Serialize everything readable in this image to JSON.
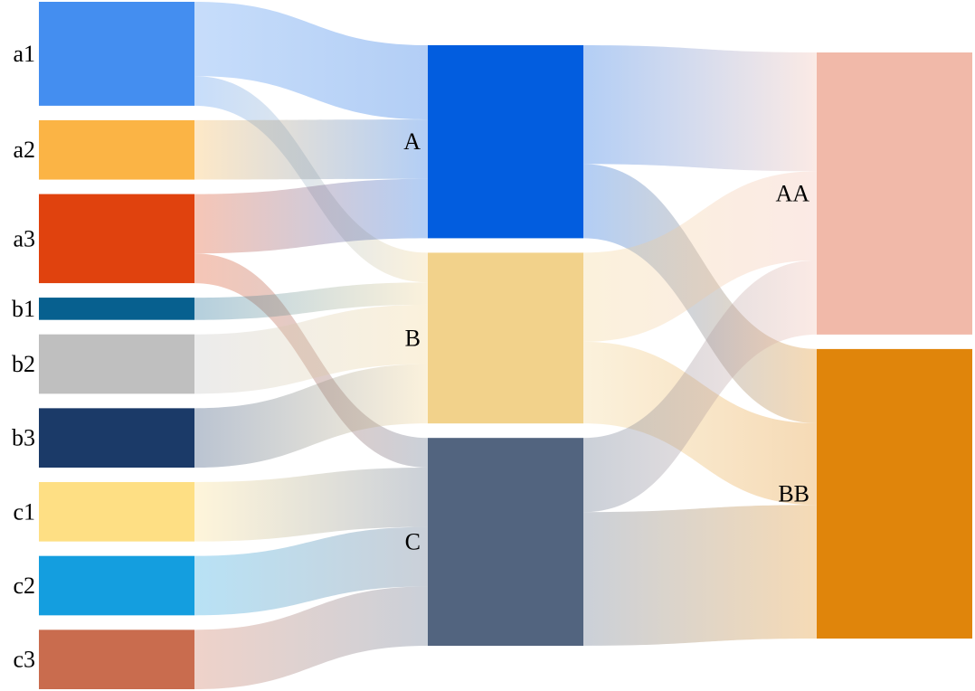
{
  "chart_data": {
    "type": "sankey",
    "nodes": [
      {
        "id": "a1",
        "label": "a1",
        "color": "#448ef0"
      },
      {
        "id": "a2",
        "label": "a2",
        "color": "#fbb445"
      },
      {
        "id": "a3",
        "label": "a3",
        "color": "#e0420e"
      },
      {
        "id": "b1",
        "label": "b1",
        "color": "#07608f"
      },
      {
        "id": "b2",
        "label": "b2",
        "color": "#bfbfbf"
      },
      {
        "id": "b3",
        "label": "b3",
        "color": "#1b3a68"
      },
      {
        "id": "c1",
        "label": "c1",
        "color": "#fedf84"
      },
      {
        "id": "c2",
        "label": "c2",
        "color": "#149edf"
      },
      {
        "id": "c3",
        "label": "c3",
        "color": "#c96c4e"
      },
      {
        "id": "A",
        "label": "A",
        "color": "#025ddf"
      },
      {
        "id": "B",
        "label": "B",
        "color": "#f2d28b"
      },
      {
        "id": "C",
        "label": "C",
        "color": "#52647f"
      },
      {
        "id": "AA",
        "label": "AA",
        "color": "#f1b9a9"
      },
      {
        "id": "BB",
        "label": "BB",
        "color": "#e0850b"
      }
    ],
    "links": [
      {
        "source": "a1",
        "target": "A",
        "value": 5
      },
      {
        "source": "a1",
        "target": "B",
        "value": 2
      },
      {
        "source": "a2",
        "target": "A",
        "value": 4
      },
      {
        "source": "a3",
        "target": "A",
        "value": 4
      },
      {
        "source": "a3",
        "target": "C",
        "value": 2
      },
      {
        "source": "b1",
        "target": "B",
        "value": 1.5
      },
      {
        "source": "b2",
        "target": "B",
        "value": 4
      },
      {
        "source": "b3",
        "target": "B",
        "value": 4
      },
      {
        "source": "c1",
        "target": "C",
        "value": 4
      },
      {
        "source": "c2",
        "target": "C",
        "value": 4
      },
      {
        "source": "c3",
        "target": "C",
        "value": 4
      },
      {
        "source": "A",
        "target": "AA",
        "value": 8
      },
      {
        "source": "A",
        "target": "BB",
        "value": 5
      },
      {
        "source": "B",
        "target": "AA",
        "value": 6
      },
      {
        "source": "B",
        "target": "BB",
        "value": 5.5
      },
      {
        "source": "C",
        "target": "AA",
        "value": 5
      },
      {
        "source": "C",
        "target": "BB",
        "value": 9
      }
    ]
  }
}
